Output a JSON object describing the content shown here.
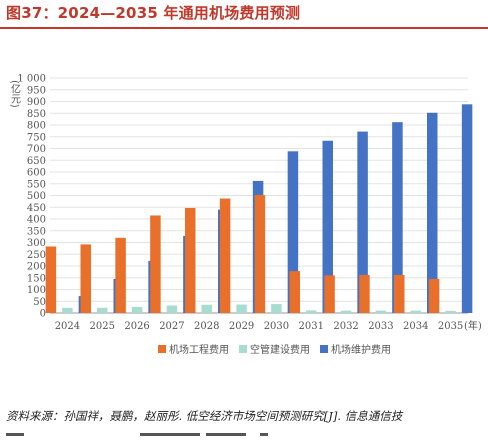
{
  "figure": {
    "title": "图37：2024—2035 年通用机场费用预测",
    "title_color": "#c0392b",
    "source": "资料来源：孙国祥，聂鹏，赵丽彤. 低空经济市场空间预测研究[J]. 信息通信技"
  },
  "chart_data": {
    "type": "bar",
    "title": "",
    "xlabel": "",
    "ylabel": "",
    "unit_label": "(亿元)",
    "x_unit_label": "(年)",
    "ylim": [
      0,
      1000
    ],
    "yticks": [
      0,
      50,
      100,
      150,
      200,
      250,
      300,
      350,
      400,
      450,
      500,
      550,
      600,
      650,
      700,
      750,
      800,
      850,
      900,
      950,
      1000
    ],
    "ytick_labels": [
      "0",
      "50",
      "100",
      "150",
      "200",
      "250",
      "300",
      "350",
      "400",
      "450",
      "500",
      "550",
      "600",
      "650",
      "700",
      "750",
      "800",
      "850",
      "900",
      "950",
      "1 000"
    ],
    "grid": true,
    "legend_position": "bottom",
    "categories": [
      "2024",
      "2025",
      "2026",
      "2027",
      "2028",
      "2029",
      "2030",
      "2031",
      "2032",
      "2033",
      "2034",
      "2035"
    ],
    "series": [
      {
        "name": "机场工程费用",
        "color": "#e8702a",
        "values": [
          283,
          292,
          320,
          415,
          447,
          487,
          502,
          178,
          160,
          162,
          162,
          145
        ]
      },
      {
        "name": "空管建设费用",
        "color": "#a9dcd0",
        "values": [
          22,
          22,
          26,
          32,
          35,
          36,
          38,
          11,
          10,
          10,
          10,
          9
        ]
      },
      {
        "name": "机场维护费用",
        "color": "#4472c4",
        "values": [
          72,
          145,
          222,
          328,
          440,
          562,
          688,
          733,
          772,
          812,
          852,
          888
        ]
      }
    ]
  }
}
